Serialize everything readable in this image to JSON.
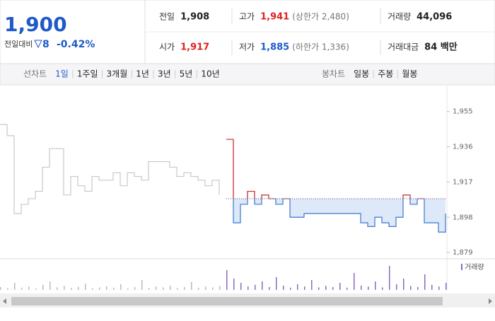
{
  "header": {
    "price": "1,900",
    "change_label": "전일대비",
    "change": "8",
    "change_pct": "-0.42%"
  },
  "stats": [
    [
      {
        "label": "전일",
        "value": "1,908"
      },
      {
        "label": "고가",
        "value": "1,941",
        "extra": "(상한가 2,480)"
      },
      {
        "label": "거래량",
        "value": "44,096"
      }
    ],
    [
      {
        "label": "시가",
        "value": "1,917"
      },
      {
        "label": "저가",
        "value": "1,885",
        "extra": "(하한가 1,336)"
      },
      {
        "label": "거래대금",
        "value": "84 백만"
      }
    ]
  ],
  "tabs": {
    "line_label": "선차트",
    "line_items": [
      "1일",
      "1주일",
      "3개월",
      "1년",
      "3년",
      "5년",
      "10년"
    ],
    "candle_label": "봉차트",
    "candle_items": [
      "일봉",
      "주봉",
      "월봉"
    ]
  },
  "chart_data": [
    {
      "type": "line",
      "reference": 1908,
      "ylim": [
        1876,
        1969
      ],
      "yticks": [
        {
          "value": 1955,
          "label": "1,955"
        },
        {
          "value": 1936,
          "label": "1,936"
        },
        {
          "value": 1917,
          "label": "1,917"
        },
        {
          "value": 1898,
          "label": "1,898"
        },
        {
          "value": 1879,
          "label": "1,879"
        }
      ],
      "series": [
        {
          "color": "#c8c8c8",
          "values": [
            1948,
            1942,
            1900,
            1905,
            1908,
            1912,
            1925,
            1935,
            1935,
            1910,
            1920,
            1915,
            1912,
            1920,
            1918,
            1918,
            1922,
            1915,
            1922,
            1920,
            1918,
            1928,
            1928,
            1928,
            1925,
            1920,
            1922,
            1920,
            1918,
            1915,
            1918,
            1910,
            null,
            null,
            null,
            null,
            null,
            null,
            null,
            null,
            null,
            null,
            null,
            null,
            null,
            null,
            null,
            null,
            null,
            null,
            null,
            null,
            null,
            null,
            null,
            null,
            null,
            null,
            null,
            null,
            null,
            null,
            null,
            null
          ]
        },
        {
          "color": "#3a78d0",
          "values": [
            null,
            null,
            null,
            null,
            null,
            null,
            null,
            null,
            null,
            null,
            null,
            null,
            null,
            null,
            null,
            null,
            null,
            null,
            null,
            null,
            null,
            null,
            null,
            null,
            null,
            null,
            null,
            null,
            null,
            null,
            null,
            null,
            1940,
            1895,
            1905,
            1912,
            1905,
            1910,
            1908,
            1905,
            1908,
            1898,
            1898,
            1900,
            1900,
            1900,
            1900,
            1900,
            1900,
            1900,
            1900,
            1895,
            1893,
            1898,
            1895,
            1893,
            1898,
            1910,
            1905,
            1908,
            1895,
            1895,
            1890,
            1900
          ]
        }
      ]
    },
    {
      "type": "bar",
      "ylim": [
        0,
        100
      ],
      "series": [
        {
          "color": "#bbbbbb",
          "values": [
            10,
            6,
            25,
            8,
            12,
            5,
            18,
            30,
            9,
            14,
            7,
            11,
            22,
            6,
            9,
            13,
            8,
            20,
            5,
            10,
            35,
            7,
            12,
            9,
            15,
            6,
            10,
            28,
            8,
            12,
            9,
            14,
            null,
            null,
            null,
            null,
            null,
            null,
            null,
            null,
            null,
            null,
            null,
            null,
            null,
            null,
            null,
            null,
            null,
            null,
            null,
            null,
            null,
            null,
            null,
            null,
            null,
            null,
            null,
            null,
            null,
            null,
            null,
            null
          ]
        },
        {
          "name": "거래량",
          "color": "#8a6bbf",
          "values": [
            null,
            null,
            null,
            null,
            null,
            null,
            null,
            null,
            null,
            null,
            null,
            null,
            null,
            null,
            null,
            null,
            null,
            null,
            null,
            null,
            null,
            null,
            null,
            null,
            null,
            null,
            null,
            null,
            null,
            null,
            null,
            null,
            70,
            40,
            25,
            12,
            18,
            30,
            10,
            45,
            15,
            8,
            20,
            12,
            35,
            9,
            14,
            10,
            25,
            8,
            60,
            15,
            12,
            30,
            9,
            85,
            20,
            40,
            14,
            10,
            55,
            18,
            12,
            25
          ]
        }
      ]
    }
  ]
}
